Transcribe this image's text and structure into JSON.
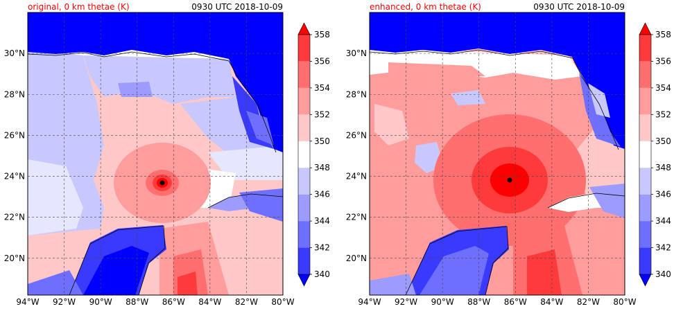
{
  "panels": [
    {
      "id": "left",
      "title": "original, 0 km thetae (K)",
      "time": "0930 UTC 2018-10-09",
      "storm_center": {
        "lon": -86.6,
        "lat": 23.8
      }
    },
    {
      "id": "right",
      "title": "enhanced, 0 km thetae (K)",
      "time": "0930 UTC 2018-10-09",
      "storm_center": {
        "lon": -86.1,
        "lat": 23.9
      }
    }
  ],
  "lon_ticks": [
    "94°W",
    "92°W",
    "90°W",
    "88°W",
    "86°W",
    "84°W",
    "82°W",
    "80°W"
  ],
  "lat_ticks": [
    "20°N",
    "22°N",
    "24°N",
    "26°N",
    "28°N",
    "30°N"
  ],
  "colorbar": {
    "min": 340,
    "max": 358,
    "step": 2,
    "labels": [
      "340",
      "342",
      "344",
      "346",
      "348",
      "350",
      "352",
      "354",
      "356",
      "358"
    ],
    "colors": [
      "#0000ff",
      "#3a3aff",
      "#6f6fff",
      "#9c9cff",
      "#c8c8ff",
      "#ffffff",
      "#ffc8c8",
      "#ff9c9c",
      "#ff6f6f",
      "#ff3a3a",
      "#ff0000"
    ]
  },
  "colors": {
    "title_accent": "#ff0000",
    "land_north": "#0000ff",
    "gulf_left": "#ffc8c8",
    "gulf_right": "#ff9c9c",
    "eye": "#000000"
  }
}
